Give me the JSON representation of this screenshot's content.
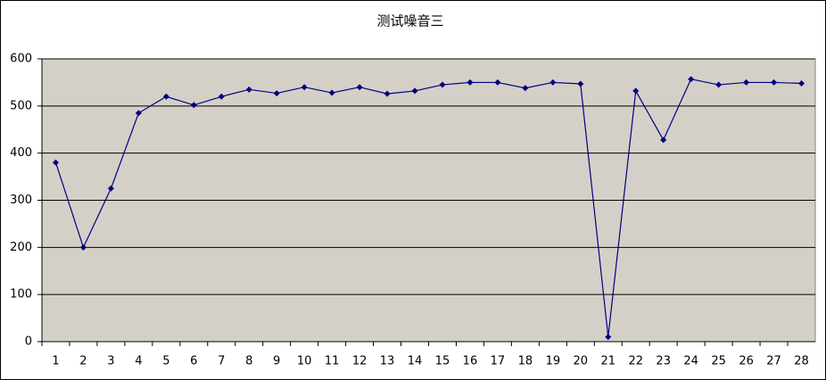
{
  "chart_data": {
    "type": "line",
    "title": "测试噪音三",
    "categories": [
      "1",
      "2",
      "3",
      "4",
      "5",
      "6",
      "7",
      "8",
      "9",
      "10",
      "11",
      "12",
      "13",
      "14",
      "15",
      "16",
      "17",
      "18",
      "19",
      "20",
      "21",
      "22",
      "23",
      "24",
      "25",
      "26",
      "27",
      "28"
    ],
    "series": [
      {
        "color": "#000080",
        "values": [
          380,
          200,
          325,
          485,
          520,
          502,
          520,
          535,
          527,
          540,
          528,
          540,
          526,
          532,
          545,
          550,
          550,
          538,
          550,
          547,
          10,
          532,
          428,
          557,
          545,
          550,
          550,
          548
        ]
      }
    ],
    "ylim": [
      0,
      600
    ],
    "yticks": [
      0,
      100,
      200,
      300,
      400,
      500,
      600
    ],
    "grid": true
  }
}
